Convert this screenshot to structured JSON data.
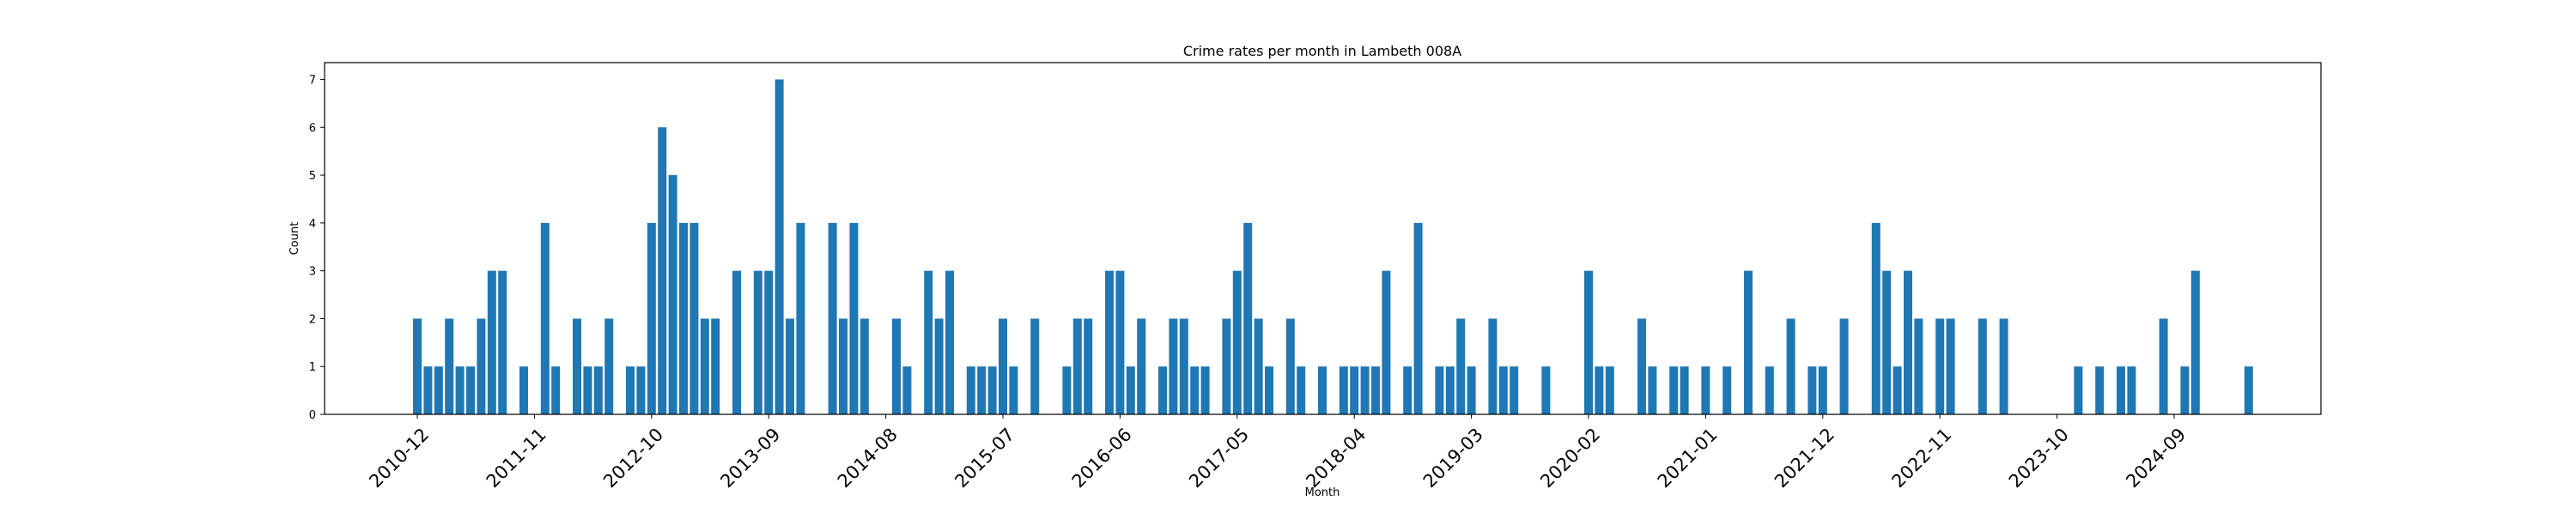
{
  "chart_data": {
    "type": "bar",
    "title": "Crime rates per month in Lambeth 008A",
    "xlabel": "Month",
    "ylabel": "Count",
    "start_month": "2010-12",
    "ylim": [
      0,
      7.35
    ],
    "yticks": [
      0,
      1,
      2,
      3,
      4,
      5,
      6,
      7
    ],
    "xticks": [
      "2010-12",
      "2011-11",
      "2012-10",
      "2013-09",
      "2014-08",
      "2015-07",
      "2016-06",
      "2017-05",
      "2018-04",
      "2019-03",
      "2020-02",
      "2021-01",
      "2021-12",
      "2022-11",
      "2023-10",
      "2024-09"
    ],
    "grid": false,
    "legend": "none",
    "colors": {
      "bar": "#1f77b4",
      "axes": "#000000",
      "background": "#ffffff"
    },
    "values": [
      2,
      1,
      1,
      2,
      1,
      1,
      2,
      3,
      3,
      0,
      1,
      0,
      4,
      1,
      0,
      2,
      1,
      1,
      2,
      0,
      1,
      1,
      4,
      6,
      5,
      4,
      4,
      2,
      2,
      0,
      3,
      0,
      3,
      3,
      7,
      2,
      4,
      0,
      0,
      4,
      2,
      4,
      2,
      0,
      0,
      2,
      1,
      0,
      3,
      2,
      3,
      0,
      1,
      1,
      1,
      2,
      1,
      0,
      2,
      0,
      0,
      1,
      2,
      2,
      0,
      3,
      3,
      1,
      2,
      0,
      1,
      2,
      2,
      1,
      1,
      0,
      2,
      3,
      4,
      2,
      1,
      0,
      2,
      1,
      0,
      1,
      0,
      1,
      1,
      1,
      1,
      3,
      0,
      1,
      4,
      0,
      1,
      1,
      2,
      1,
      0,
      2,
      1,
      1,
      0,
      0,
      1,
      0,
      0,
      0,
      3,
      1,
      1,
      0,
      0,
      2,
      1,
      0,
      1,
      1,
      0,
      1,
      0,
      1,
      0,
      3,
      0,
      1,
      0,
      2,
      0,
      1,
      1,
      0,
      2,
      0,
      0,
      4,
      3,
      1,
      3,
      2,
      0,
      2,
      2,
      0,
      0,
      2,
      0,
      2,
      0,
      0,
      0,
      0,
      0,
      0,
      1,
      0,
      1,
      0,
      1,
      1,
      0,
      0,
      2,
      0,
      1,
      3,
      0,
      0,
      0,
      0,
      1
    ]
  }
}
